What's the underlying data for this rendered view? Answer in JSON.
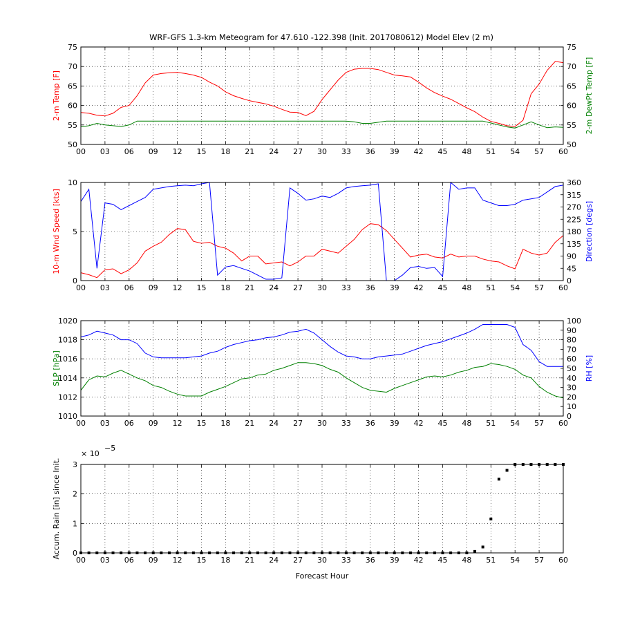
{
  "title": "WRF-GFS 1.3-km Meteogram for 47.610 -122.398 (Init. 2017080612) Model Elev (2 m)",
  "colors": {
    "red": "#ff0000",
    "green": "#008000",
    "blue": "#0000ff",
    "black": "#000000"
  },
  "chart_data": [
    {
      "type": "line",
      "x_ticks": [
        "00",
        "03",
        "06",
        "09",
        "12",
        "15",
        "18",
        "21",
        "24",
        "27",
        "30",
        "33",
        "36",
        "39",
        "42",
        "45",
        "48",
        "51",
        "54",
        "57",
        "60"
      ],
      "xlim": [
        0,
        60
      ],
      "ylabel_left": "2-m Temp [F]",
      "ylabel_right": "2-m DewPt Temp [F]",
      "ylim_left": [
        50,
        75
      ],
      "ylim_right": [
        50,
        75
      ],
      "yticks_left": [
        50,
        55,
        60,
        65,
        70,
        75
      ],
      "yticks_right": [
        50,
        55,
        60,
        65,
        70,
        75
      ],
      "grid": true,
      "series": [
        {
          "color": "red",
          "axis": "left",
          "x": [
            0,
            1,
            2,
            3,
            4,
            5,
            6,
            7,
            8,
            9,
            10,
            11,
            12,
            13,
            14,
            15,
            16,
            17,
            18,
            19,
            20,
            21,
            22,
            23,
            24,
            25,
            26,
            27,
            28,
            29,
            30,
            31,
            32,
            33,
            34,
            35,
            36,
            37,
            38,
            39,
            40,
            41,
            42,
            43,
            44,
            45,
            46,
            47,
            48,
            49,
            50,
            51,
            52,
            53,
            54,
            55,
            56,
            57,
            58,
            59,
            60
          ],
          "y": [
            58.2,
            58.0,
            57.5,
            57.3,
            58.0,
            59.5,
            60.0,
            62.5,
            65.8,
            67.8,
            68.2,
            68.4,
            68.5,
            68.2,
            67.8,
            67.2,
            66.0,
            65.0,
            63.5,
            62.5,
            61.8,
            61.2,
            60.8,
            60.4,
            59.8,
            59.0,
            58.3,
            58.2,
            57.4,
            58.5,
            61.5,
            64.0,
            66.5,
            68.5,
            69.3,
            69.5,
            69.5,
            69.2,
            68.5,
            67.8,
            67.6,
            67.3,
            66.0,
            64.5,
            63.3,
            62.4,
            61.6,
            60.5,
            59.4,
            58.4,
            57.0,
            55.9,
            55.4,
            54.8,
            54.6,
            56.2,
            63.0,
            65.5,
            69.0,
            71.3,
            71.0
          ]
        },
        {
          "color": "green",
          "axis": "right",
          "x": [
            0,
            1,
            2,
            3,
            4,
            5,
            6,
            7,
            8,
            9,
            10,
            11,
            12,
            13,
            14,
            15,
            16,
            17,
            18,
            19,
            20,
            21,
            22,
            23,
            24,
            25,
            26,
            27,
            28,
            29,
            30,
            31,
            32,
            33,
            34,
            35,
            36,
            37,
            38,
            39,
            40,
            41,
            42,
            43,
            44,
            45,
            46,
            47,
            48,
            49,
            50,
            51,
            52,
            53,
            54,
            55,
            56,
            57,
            58,
            59,
            60
          ],
          "y": [
            54.5,
            54.8,
            55.4,
            55.0,
            54.8,
            54.6,
            55.0,
            56.0,
            56.0,
            56.0,
            56.0,
            56.0,
            56.0,
            56.0,
            56.0,
            56.0,
            56.0,
            56.0,
            56.0,
            56.0,
            56.0,
            56.0,
            56.0,
            56.0,
            56.0,
            56.0,
            56.0,
            56.0,
            56.0,
            56.0,
            56.0,
            56.0,
            56.0,
            56.0,
            55.8,
            55.4,
            55.4,
            55.7,
            56.0,
            56.0,
            56.0,
            56.0,
            56.0,
            56.0,
            56.0,
            56.0,
            56.0,
            56.0,
            56.0,
            56.0,
            56.0,
            55.5,
            55.0,
            54.5,
            54.2,
            55.0,
            55.8,
            55.0,
            54.3,
            54.5,
            54.4
          ]
        }
      ]
    },
    {
      "type": "line",
      "x_ticks": [
        "00",
        "03",
        "06",
        "09",
        "12",
        "15",
        "18",
        "21",
        "24",
        "27",
        "30",
        "33",
        "36",
        "39",
        "42",
        "45",
        "48",
        "51",
        "54",
        "57",
        "60"
      ],
      "xlim": [
        0,
        60
      ],
      "ylabel_left": "10-m Wnd Speed [kts]",
      "ylabel_right": "Direction [degs]",
      "ylim_left": [
        0,
        10
      ],
      "ylim_right": [
        0,
        360
      ],
      "yticks_left": [
        0,
        5,
        10
      ],
      "yticks_right": [
        0,
        45,
        90,
        135,
        180,
        225,
        270,
        315,
        360
      ],
      "grid": true,
      "series": [
        {
          "color": "red",
          "axis": "left",
          "x": [
            0,
            1,
            2,
            3,
            4,
            5,
            6,
            7,
            8,
            9,
            10,
            11,
            12,
            13,
            14,
            15,
            16,
            17,
            18,
            19,
            20,
            21,
            22,
            23,
            24,
            25,
            26,
            27,
            28,
            29,
            30,
            31,
            32,
            33,
            34,
            35,
            36,
            37,
            38,
            39,
            40,
            41,
            42,
            43,
            44,
            45,
            46,
            47,
            48,
            49,
            50,
            51,
            52,
            53,
            54,
            55,
            56,
            57,
            58,
            59,
            60
          ],
          "y": [
            0.8,
            0.6,
            0.3,
            1.1,
            1.2,
            0.7,
            1.1,
            1.8,
            3.0,
            3.5,
            3.9,
            4.7,
            5.3,
            5.2,
            4.0,
            3.8,
            3.9,
            3.5,
            3.3,
            2.8,
            2.0,
            2.5,
            2.5,
            1.7,
            1.8,
            1.9,
            1.5,
            1.9,
            2.5,
            2.5,
            3.2,
            3.0,
            2.8,
            3.5,
            4.2,
            5.2,
            5.8,
            5.7,
            5.1,
            4.2,
            3.3,
            2.4,
            2.6,
            2.7,
            2.4,
            2.3,
            2.7,
            2.4,
            2.5,
            2.5,
            2.2,
            2.0,
            1.9,
            1.5,
            1.2,
            3.2,
            2.8,
            2.6,
            2.8,
            3.9,
            4.6
          ]
        },
        {
          "color": "blue",
          "axis": "right",
          "x": [
            0,
            1,
            2,
            3,
            4,
            5,
            6,
            7,
            8,
            9,
            10,
            11,
            12,
            13,
            14,
            15,
            16,
            17,
            18,
            19,
            20,
            21,
            22,
            23,
            24,
            25,
            26,
            27,
            28,
            29,
            30,
            31,
            32,
            33,
            34,
            35,
            36,
            37,
            38,
            39,
            40,
            41,
            42,
            43,
            44,
            45,
            46,
            47,
            48,
            49,
            50,
            51,
            52,
            53,
            54,
            55,
            56,
            57,
            58,
            59,
            60
          ],
          "y": [
            290,
            335,
            45,
            285,
            280,
            260,
            275,
            290,
            305,
            335,
            340,
            345,
            348,
            350,
            348,
            355,
            360,
            20,
            50,
            55,
            45,
            35,
            20,
            5,
            5,
            10,
            340,
            320,
            295,
            300,
            310,
            305,
            320,
            340,
            345,
            348,
            350,
            355,
            0,
            0,
            20,
            48,
            52,
            45,
            48,
            15,
            360,
            335,
            340,
            340,
            295,
            285,
            275,
            275,
            280,
            295,
            300,
            305,
            325,
            345,
            350
          ]
        }
      ]
    },
    {
      "type": "line",
      "x_ticks": [
        "00",
        "03",
        "06",
        "09",
        "12",
        "15",
        "18",
        "21",
        "24",
        "27",
        "30",
        "33",
        "36",
        "39",
        "42",
        "45",
        "48",
        "51",
        "54",
        "57",
        "60"
      ],
      "xlim": [
        0,
        60
      ],
      "ylabel_left": "SLP [hPa]",
      "ylabel_right": "RH [%]",
      "ylim_left": [
        1010,
        1020
      ],
      "ylim_right": [
        0,
        100
      ],
      "yticks_left": [
        1010,
        1012,
        1014,
        1016,
        1018,
        1020
      ],
      "yticks_right": [
        0,
        10,
        20,
        30,
        40,
        50,
        60,
        70,
        80,
        90,
        100
      ],
      "grid": true,
      "series": [
        {
          "color": "green",
          "axis": "left",
          "x": [
            0,
            1,
            2,
            3,
            4,
            5,
            6,
            7,
            8,
            9,
            10,
            11,
            12,
            13,
            14,
            15,
            16,
            17,
            18,
            19,
            20,
            21,
            22,
            23,
            24,
            25,
            26,
            27,
            28,
            29,
            30,
            31,
            32,
            33,
            34,
            35,
            36,
            37,
            38,
            39,
            40,
            41,
            42,
            43,
            44,
            45,
            46,
            47,
            48,
            49,
            50,
            51,
            52,
            53,
            54,
            55,
            56,
            57,
            58,
            59,
            60
          ],
          "y": [
            1012.7,
            1013.8,
            1014.2,
            1014.1,
            1014.5,
            1014.8,
            1014.4,
            1014.0,
            1013.7,
            1013.2,
            1013.0,
            1012.6,
            1012.3,
            1012.1,
            1012.1,
            1012.1,
            1012.5,
            1012.8,
            1013.1,
            1013.5,
            1013.9,
            1014.0,
            1014.3,
            1014.4,
            1014.8,
            1015.0,
            1015.3,
            1015.6,
            1015.6,
            1015.5,
            1015.3,
            1014.9,
            1014.6,
            1014.0,
            1013.5,
            1013.0,
            1012.7,
            1012.6,
            1012.5,
            1012.9,
            1013.2,
            1013.5,
            1013.8,
            1014.1,
            1014.2,
            1014.1,
            1014.3,
            1014.6,
            1014.8,
            1015.1,
            1015.2,
            1015.5,
            1015.4,
            1015.2,
            1014.9,
            1014.3,
            1014.0,
            1013.1,
            1012.5,
            1012.1,
            1011.9
          ]
        },
        {
          "color": "blue",
          "axis": "right",
          "x": [
            0,
            1,
            2,
            3,
            4,
            5,
            6,
            7,
            8,
            9,
            10,
            11,
            12,
            13,
            14,
            15,
            16,
            17,
            18,
            19,
            20,
            21,
            22,
            23,
            24,
            25,
            26,
            27,
            28,
            29,
            30,
            31,
            32,
            33,
            34,
            35,
            36,
            37,
            38,
            39,
            40,
            41,
            42,
            43,
            44,
            45,
            46,
            47,
            48,
            49,
            50,
            51,
            52,
            53,
            54,
            55,
            56,
            57,
            58,
            59,
            60
          ],
          "y": [
            83,
            85,
            89,
            87,
            85,
            80,
            80,
            76,
            66,
            62,
            61,
            61,
            61,
            61,
            62,
            63,
            66,
            68,
            72,
            75,
            77,
            79,
            80,
            82,
            83,
            85,
            88,
            89,
            91,
            87,
            80,
            73,
            67,
            63,
            62,
            60,
            60,
            62,
            63,
            64,
            65,
            68,
            71,
            74,
            76,
            78,
            81,
            84,
            87,
            91,
            96,
            96,
            96,
            96,
            93,
            75,
            69,
            57,
            52,
            52,
            52
          ]
        }
      ]
    },
    {
      "type": "scatter",
      "x_ticks": [
        "00",
        "03",
        "06",
        "09",
        "12",
        "15",
        "18",
        "21",
        "24",
        "27",
        "30",
        "33",
        "36",
        "39",
        "42",
        "45",
        "48",
        "51",
        "54",
        "57",
        "60"
      ],
      "xlim": [
        0,
        60
      ],
      "xlabel": "Forecast Hour",
      "ylabel_left": "Accum. Rain [in] since Init.",
      "ylim_left": [
        0,
        3
      ],
      "yticks_left": [
        0,
        1,
        2,
        3
      ],
      "y_scale_prefix": "× 10",
      "y_scale_exponent": "−5",
      "grid": true,
      "series": [
        {
          "color": "black",
          "axis": "left",
          "x": [
            0,
            1,
            2,
            3,
            4,
            5,
            6,
            7,
            8,
            9,
            10,
            11,
            12,
            13,
            14,
            15,
            16,
            17,
            18,
            19,
            20,
            21,
            22,
            23,
            24,
            25,
            26,
            27,
            28,
            29,
            30,
            31,
            32,
            33,
            34,
            35,
            36,
            37,
            38,
            39,
            40,
            41,
            42,
            43,
            44,
            45,
            46,
            47,
            48,
            49,
            50,
            51,
            52,
            53,
            54,
            55,
            56,
            57,
            58,
            59,
            60
          ],
          "y": [
            0,
            0,
            0,
            0,
            0,
            0,
            0,
            0,
            0,
            0,
            0,
            0,
            0,
            0,
            0,
            0,
            0,
            0,
            0,
            0,
            0,
            0,
            0,
            0,
            0,
            0,
            0,
            0,
            0,
            0,
            0,
            0,
            0,
            0,
            0,
            0,
            0,
            0,
            0,
            0,
            0,
            0,
            0,
            0,
            0,
            0,
            0,
            0,
            0,
            0.05,
            0.2,
            1.15,
            2.5,
            2.8,
            3.0,
            3.0,
            3.0,
            3.0,
            3.0,
            3.0,
            3.0
          ]
        }
      ]
    }
  ]
}
